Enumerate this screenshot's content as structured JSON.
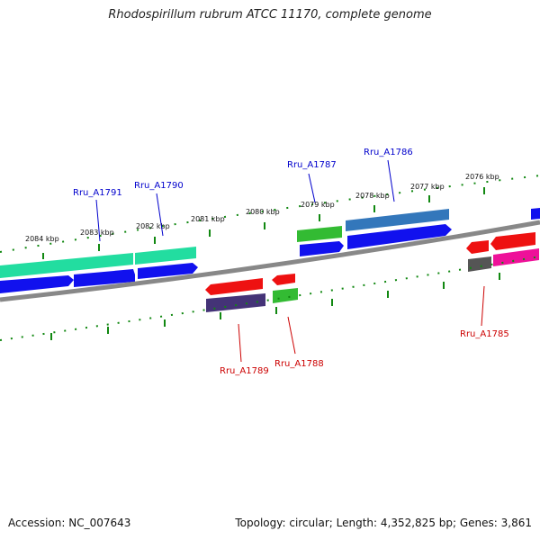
{
  "title": "Rhodospirillum rubrum ATCC 11170, complete genome",
  "footer": {
    "accession": "Accession: NC_007643",
    "summary": "Topology: circular; Length: 4,352,825 bp; Genes: 3,861"
  },
  "ruler_labels": [
    "2084 kbp",
    "2083 kbp",
    "2082 kbp",
    "2081 kbp",
    "2080 kbp",
    "2079 kbp",
    "2078 kbp",
    "2077 kbp",
    "2076 kbp"
  ],
  "genes": [
    {
      "label": "Rru_A1791",
      "strand": "+"
    },
    {
      "label": "Rru_A1790",
      "strand": "+"
    },
    {
      "label": "Rru_A1787",
      "strand": "+"
    },
    {
      "label": "Rru_A1786",
      "strand": "+"
    },
    {
      "label": "Rru_A1789",
      "strand": "-"
    },
    {
      "label": "Rru_A1788",
      "strand": "-"
    },
    {
      "label": "Rru_A1785",
      "strand": "-"
    }
  ],
  "colors": {
    "forward_label": "#0000cc",
    "reverse_label": "#cc0000",
    "backbone": "#888888",
    "tick": "#118811",
    "cds_forward": "#0000ee",
    "cds_reverse": "#ee0000"
  }
}
